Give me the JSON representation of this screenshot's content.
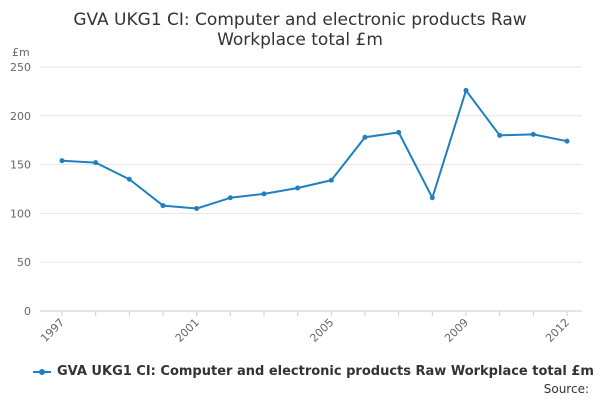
{
  "chart_data": {
    "type": "line",
    "title_lines": [
      "GVA UKG1 CI: Computer and electronic products Raw",
      "Workplace total £m"
    ],
    "y_unit": "£m",
    "x": [
      1997,
      1998,
      1999,
      2000,
      2001,
      2002,
      2003,
      2004,
      2005,
      2006,
      2007,
      2008,
      2009,
      2010,
      2011,
      2012
    ],
    "x_tick_labels": [
      "1997",
      "2001",
      "2005",
      "2009",
      "2012"
    ],
    "ylim": [
      0,
      250
    ],
    "y_ticks": [
      0,
      50,
      100,
      150,
      200,
      250
    ],
    "grid": true,
    "legend_position": "bottom",
    "series": [
      {
        "name": "GVA UKG1 CI: Computer and electronic products Raw Workplace total £m",
        "color": "#1f80c0",
        "values": [
          154,
          152,
          135,
          108,
          105,
          116,
          120,
          126,
          134,
          178,
          183,
          116,
          226,
          180,
          181,
          174
        ]
      }
    ],
    "source_label": "Source:"
  }
}
